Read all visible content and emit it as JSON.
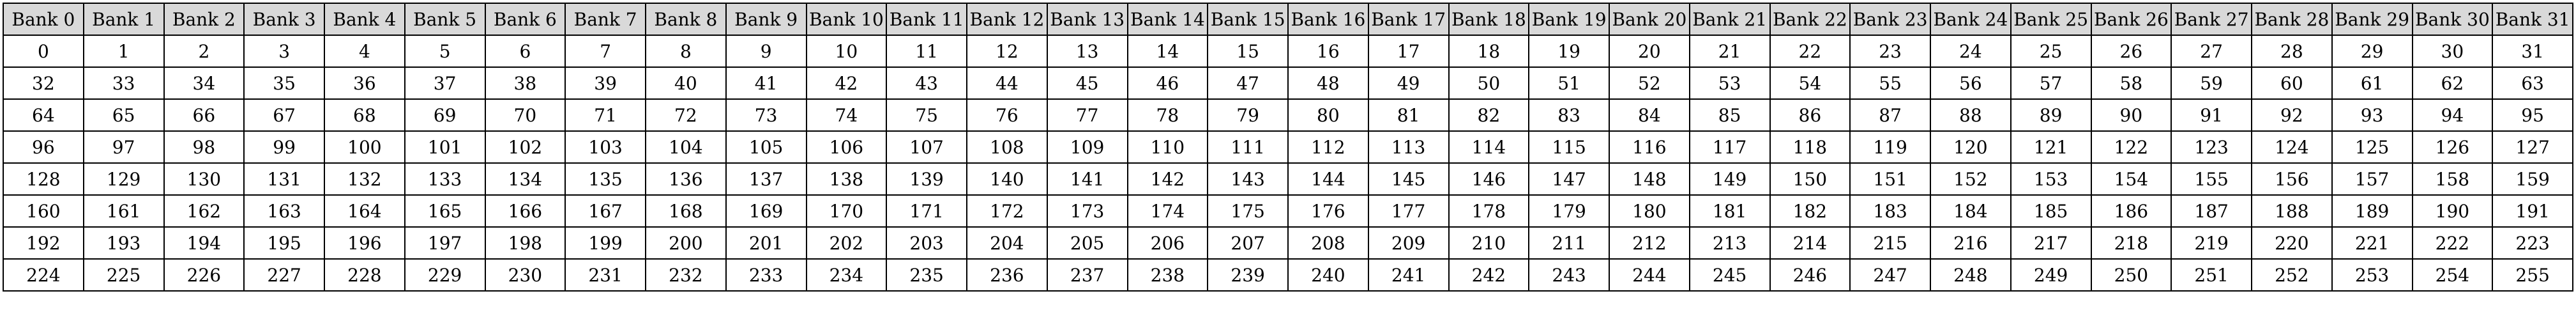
{
  "table": {
    "headers": [
      "Bank 0",
      "Bank 1",
      "Bank 2",
      "Bank 3",
      "Bank 4",
      "Bank 5",
      "Bank 6",
      "Bank 7",
      "Bank 8",
      "Bank 9",
      "Bank 10",
      "Bank 11",
      "Bank 12",
      "Bank 13",
      "Bank 14",
      "Bank 15",
      "Bank 16",
      "Bank 17",
      "Bank 18",
      "Bank 19",
      "Bank 20",
      "Bank 21",
      "Bank 22",
      "Bank 23",
      "Bank 24",
      "Bank 25",
      "Bank 26",
      "Bank 27",
      "Bank 28",
      "Bank 29",
      "Bank 30",
      "Bank 31"
    ],
    "rows": [
      [
        "0",
        "1",
        "2",
        "3",
        "4",
        "5",
        "6",
        "7",
        "8",
        "9",
        "10",
        "11",
        "12",
        "13",
        "14",
        "15",
        "16",
        "17",
        "18",
        "19",
        "20",
        "21",
        "22",
        "23",
        "24",
        "25",
        "26",
        "27",
        "28",
        "29",
        "30",
        "31"
      ],
      [
        "32",
        "33",
        "34",
        "35",
        "36",
        "37",
        "38",
        "39",
        "40",
        "41",
        "42",
        "43",
        "44",
        "45",
        "46",
        "47",
        "48",
        "49",
        "50",
        "51",
        "52",
        "53",
        "54",
        "55",
        "56",
        "57",
        "58",
        "59",
        "60",
        "61",
        "62",
        "63"
      ],
      [
        "64",
        "65",
        "66",
        "67",
        "68",
        "69",
        "70",
        "71",
        "72",
        "73",
        "74",
        "75",
        "76",
        "77",
        "78",
        "79",
        "80",
        "81",
        "82",
        "83",
        "84",
        "85",
        "86",
        "87",
        "88",
        "89",
        "90",
        "91",
        "92",
        "93",
        "94",
        "95"
      ],
      [
        "96",
        "97",
        "98",
        "99",
        "100",
        "101",
        "102",
        "103",
        "104",
        "105",
        "106",
        "107",
        "108",
        "109",
        "110",
        "111",
        "112",
        "113",
        "114",
        "115",
        "116",
        "117",
        "118",
        "119",
        "120",
        "121",
        "122",
        "123",
        "124",
        "125",
        "126",
        "127"
      ],
      [
        "128",
        "129",
        "130",
        "131",
        "132",
        "133",
        "134",
        "135",
        "136",
        "137",
        "138",
        "139",
        "140",
        "141",
        "142",
        "143",
        "144",
        "145",
        "146",
        "147",
        "148",
        "149",
        "150",
        "151",
        "152",
        "153",
        "154",
        "155",
        "156",
        "157",
        "158",
        "159"
      ],
      [
        "160",
        "161",
        "162",
        "163",
        "164",
        "165",
        "166",
        "167",
        "168",
        "169",
        "170",
        "171",
        "172",
        "173",
        "174",
        "175",
        "176",
        "177",
        "178",
        "179",
        "180",
        "181",
        "182",
        "183",
        "184",
        "185",
        "186",
        "187",
        "188",
        "189",
        "190",
        "191"
      ],
      [
        "192",
        "193",
        "194",
        "195",
        "196",
        "197",
        "198",
        "199",
        "200",
        "201",
        "202",
        "203",
        "204",
        "205",
        "206",
        "207",
        "208",
        "209",
        "210",
        "211",
        "212",
        "213",
        "214",
        "215",
        "216",
        "217",
        "218",
        "219",
        "220",
        "221",
        "222",
        "223"
      ],
      [
        "224",
        "225",
        "226",
        "227",
        "228",
        "229",
        "230",
        "231",
        "232",
        "233",
        "234",
        "235",
        "236",
        "237",
        "238",
        "239",
        "240",
        "241",
        "242",
        "243",
        "244",
        "245",
        "246",
        "247",
        "248",
        "249",
        "250",
        "251",
        "252",
        "253",
        "254",
        "255"
      ]
    ]
  },
  "colors": {
    "header_background": "#d9d9d9",
    "cell_background": "#ffffff",
    "border": "#000000",
    "text": "#000000"
  }
}
